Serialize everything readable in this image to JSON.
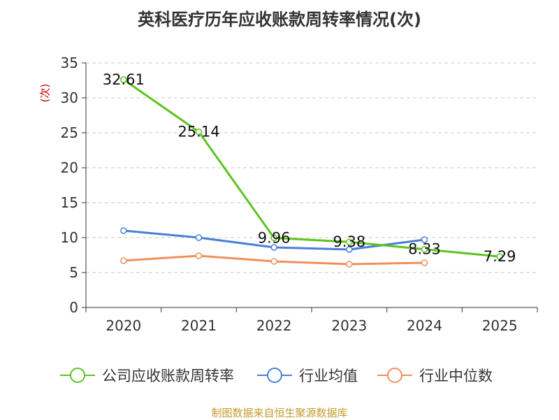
{
  "chart_data": {
    "type": "line",
    "title": "英科医疗历年应收账款周转率情况(次)",
    "ylabel": "(次)",
    "xlabel": "",
    "categories": [
      "2020",
      "2021",
      "2022",
      "2023",
      "2024",
      "2025"
    ],
    "ylim": [
      0,
      35
    ],
    "yticks": [
      "0",
      "5",
      "10",
      "15",
      "20",
      "25",
      "30",
      "35"
    ],
    "grid": true,
    "legend_position": "bottom",
    "series": [
      {
        "name": "公司应收账款周转率",
        "color": "#5cc41f",
        "values": [
          32.61,
          25.14,
          9.96,
          9.38,
          8.33,
          7.29
        ],
        "labels": [
          "32.61",
          "25.14",
          "9.96",
          "9.38",
          "8.33",
          "7.29"
        ]
      },
      {
        "name": "行业均值",
        "color": "#4a7fd9",
        "values": [
          11.0,
          10.0,
          8.6,
          8.3,
          9.7,
          null
        ]
      },
      {
        "name": "行业中位数",
        "color": "#f28f5b",
        "values": [
          6.7,
          7.4,
          6.6,
          6.2,
          6.4,
          null
        ]
      }
    ]
  },
  "footer": {
    "source": "制图数据来自恒生聚源数据库"
  }
}
